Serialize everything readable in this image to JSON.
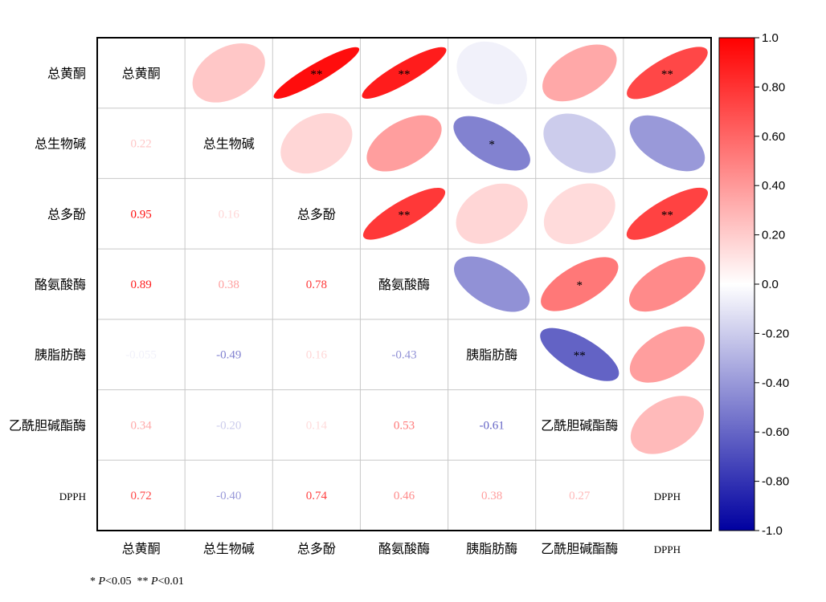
{
  "chart_data": {
    "type": "heatmap",
    "variables": [
      "总黄酮",
      "总生物碱",
      "总多酚",
      "酪氨酸酶",
      "胰脂肪酶",
      "乙酰胆碱酯酶",
      "DPPH"
    ],
    "matrix": [
      [
        1,
        0.22,
        0.95,
        0.89,
        -0.055,
        0.34,
        0.72
      ],
      [
        0.22,
        1,
        0.16,
        0.38,
        -0.49,
        -0.2,
        -0.4
      ],
      [
        0.95,
        0.16,
        1,
        0.78,
        0.16,
        0.14,
        0.74
      ],
      [
        0.89,
        0.38,
        0.78,
        1,
        -0.43,
        0.53,
        0.46
      ],
      [
        -0.055,
        -0.49,
        0.16,
        -0.43,
        1,
        -0.61,
        0.38
      ],
      [
        0.34,
        -0.2,
        0.14,
        0.53,
        -0.61,
        1,
        0.27
      ],
      [
        0.72,
        -0.4,
        0.74,
        0.46,
        0.38,
        0.27,
        1
      ]
    ],
    "lower_labels": [
      [
        "0.22"
      ],
      [
        "0.95",
        "0.16"
      ],
      [
        "0.89",
        "0.38",
        "0.78"
      ],
      [
        "-0.055",
        "-0.49",
        "0.16",
        "-0.43"
      ],
      [
        "0.34",
        "-0.20",
        "0.14",
        "0.53",
        "-0.61"
      ],
      [
        "0.72",
        "-0.40",
        "0.74",
        "0.46",
        "0.38",
        "0.27"
      ]
    ],
    "significance": [
      [
        "",
        "",
        "**",
        "**",
        "",
        "",
        "**"
      ],
      [
        "",
        "",
        "",
        "",
        "*",
        "",
        ""
      ],
      [
        "**",
        "",
        "",
        "**",
        "",
        "",
        "**"
      ],
      [
        "**",
        "",
        "**",
        "",
        "",
        "*",
        ""
      ],
      [
        "",
        "*",
        "",
        "",
        "",
        "**",
        ""
      ],
      [
        "",
        "",
        "",
        "*",
        "**",
        "",
        ""
      ],
      [
        "**",
        "",
        "**",
        "",
        "",
        "",
        ""
      ]
    ],
    "colorbar": {
      "min": -1.0,
      "max": 1.0,
      "ticks": [
        "1.0",
        "0.80",
        "0.60",
        "0.40",
        "0.20",
        "0.0",
        "-0.20",
        "-0.40",
        "-0.60",
        "-0.80",
        "-1.0"
      ],
      "colors": {
        "negative": "#0000a0",
        "neutral": "#ffffff",
        "positive": "#ff0000"
      }
    },
    "upper_triangle": "ellipse",
    "lower_triangle": "number",
    "grid": true
  },
  "footnote": {
    "p05_stars": "*",
    "p05_label": "P",
    "p05_value": "<0.05",
    "p01_stars": "**",
    "p01_label": "P",
    "p01_value": "<0.01"
  }
}
